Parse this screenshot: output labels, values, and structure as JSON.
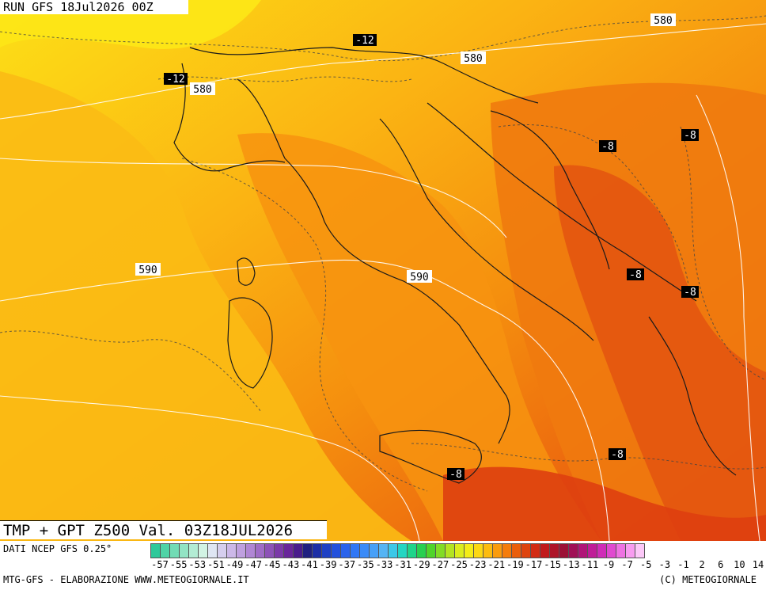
{
  "header": {
    "run": "RUN GFS 18Jul2026 00Z"
  },
  "map": {
    "title": "TMP + GPT Z500 Val. 03Z18JUL2026",
    "contour_labels_height": [
      "580",
      "580",
      "580",
      "590",
      "590"
    ],
    "contour_labels_temp": [
      "-12",
      "-12",
      "-8",
      "-8",
      "-8",
      "-8",
      "-8",
      "-8"
    ]
  },
  "source": "DATI NCEP GFS 0.25°",
  "footer": {
    "left": "MTG-GFS - ELABORAZIONE WWW.METEOGIORNALE.IT",
    "right": "(C) METEOGIORNALE"
  },
  "colorbar": {
    "colors": [
      "#2ec99a",
      "#4fd3a6",
      "#72dcb5",
      "#92e4c4",
      "#b3ecd4",
      "#d2f3e4",
      "#dfe6f3",
      "#d6cfee",
      "#ccb8e8",
      "#bfa0df",
      "#b086d4",
      "#9f6cc6",
      "#8d52b7",
      "#7b39a8",
      "#69259a",
      "#4a1c8c",
      "#202080",
      "#1c2ea6",
      "#1e40c4",
      "#2250dc",
      "#2a63ec",
      "#3077f4",
      "#3a8bf8",
      "#47a0f8",
      "#55b4f4",
      "#3cc8e8",
      "#23d6c2",
      "#1fd48a",
      "#28d050",
      "#4fd42a",
      "#82dc26",
      "#b4e422",
      "#dcec1e",
      "#f4ec18",
      "#fcd814",
      "#fcbc10",
      "#fa9c0e",
      "#f47c0c",
      "#ea5e0c",
      "#de440e",
      "#d22c14",
      "#c01a1c",
      "#ae1428",
      "#9c1036",
      "#a01056",
      "#b01478",
      "#c01c98",
      "#d02cb8",
      "#e04ad0",
      "#ee72e2",
      "#f89cf0",
      "#fcc8f8"
    ],
    "ticks": [
      "-57",
      "-55",
      "-53",
      "-51",
      "-49",
      "-47",
      "-45",
      "-43",
      "-41",
      "-39",
      "-37",
      "-35",
      "-33",
      "-31",
      "-29",
      "-27",
      "-25",
      "-23",
      "-21",
      "-19",
      "-17",
      "-15",
      "-13",
      "-11",
      "-9",
      "-7",
      "-5",
      "-3",
      "-1",
      "2",
      "6",
      "10",
      "14"
    ]
  }
}
